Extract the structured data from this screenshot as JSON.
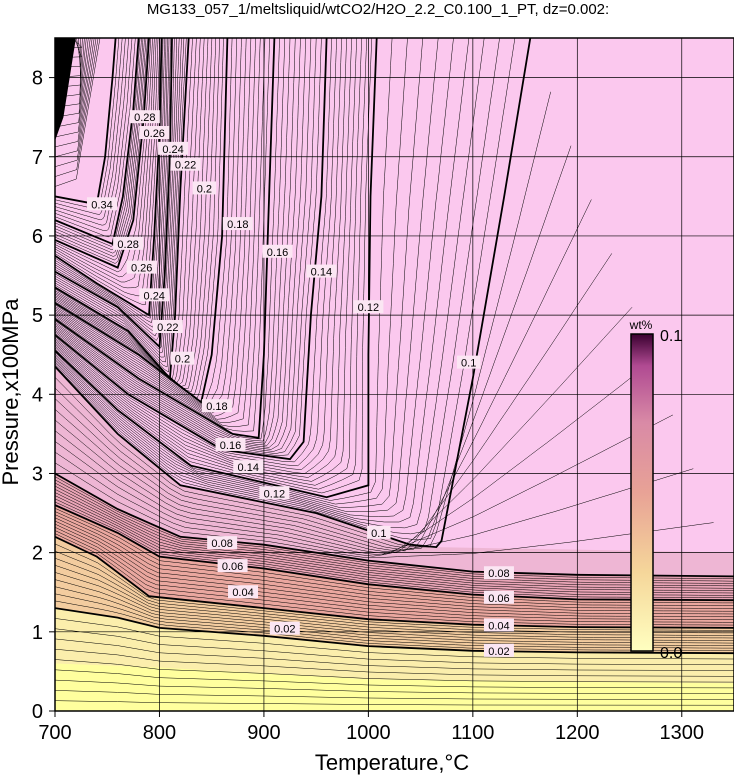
{
  "chart_data": {
    "type": "heatmap",
    "title": "MG133_057_1/meltsliquid/wtCO2/H2O_2.2_C0.100_1_PT, dz=0.002:",
    "xlabel": "Temperature,°C",
    "ylabel": "Pressure,x100MPa",
    "xlim": [
      700,
      1350
    ],
    "ylim": [
      0,
      8.5
    ],
    "x_ticks": [
      "700",
      "800",
      "900",
      "1000",
      "1100",
      "1200",
      "1300"
    ],
    "y_ticks": [
      "0",
      "1",
      "2",
      "3",
      "4",
      "5",
      "6",
      "7",
      "8"
    ],
    "grid": true,
    "colorbar": {
      "label": "wt%",
      "min_label": "0.0",
      "max_label": "0.1",
      "range": [
        0,
        0.1
      ],
      "colors": [
        "#ffffc0",
        "#f5d69a",
        "#e8a296",
        "#d98aa6",
        "#b04a92",
        "#3a0030"
      ]
    },
    "contour_interval": 0.002,
    "labeled_contours": [
      {
        "level": "0.02",
        "points": [
          [
            700,
            1.3
          ],
          [
            760,
            1.18
          ],
          [
            800,
            1.05
          ],
          [
            900,
            0.95
          ],
          [
            1000,
            0.82
          ],
          [
            1100,
            0.76
          ],
          [
            1200,
            0.74
          ],
          [
            1350,
            0.73
          ]
        ]
      },
      {
        "level": "0.04",
        "points": [
          [
            700,
            2.2
          ],
          [
            740,
            1.95
          ],
          [
            790,
            1.45
          ],
          [
            900,
            1.3
          ],
          [
            1000,
            1.16
          ],
          [
            1100,
            1.09
          ],
          [
            1200,
            1.06
          ],
          [
            1350,
            1.05
          ]
        ]
      },
      {
        "level": "0.06",
        "points": [
          [
            700,
            2.6
          ],
          [
            760,
            2.25
          ],
          [
            800,
            1.95
          ],
          [
            900,
            1.8
          ],
          [
            1000,
            1.6
          ],
          [
            1100,
            1.47
          ],
          [
            1200,
            1.41
          ],
          [
            1350,
            1.4
          ]
        ]
      },
      {
        "level": "0.08",
        "points": [
          [
            700,
            3.0
          ],
          [
            760,
            2.55
          ],
          [
            820,
            2.2
          ],
          [
            900,
            2.1
          ],
          [
            1000,
            1.9
          ],
          [
            1100,
            1.76
          ],
          [
            1200,
            1.72
          ],
          [
            1350,
            1.7
          ]
        ]
      },
      {
        "level": "0.1",
        "points": [
          [
            700,
            4.35
          ],
          [
            760,
            3.5
          ],
          [
            820,
            2.85
          ],
          [
            950,
            2.5
          ],
          [
            1040,
            2.1
          ],
          [
            1065,
            2.07
          ],
          [
            1070,
            2.15
          ],
          [
            1100,
            4.2
          ],
          [
            1130,
            6.5
          ],
          [
            1155,
            8.5
          ]
        ]
      },
      {
        "level": "0.12",
        "points": [
          [
            700,
            4.55
          ],
          [
            760,
            3.8
          ],
          [
            830,
            3.1
          ],
          [
            960,
            2.7
          ],
          [
            1000,
            2.85
          ],
          [
            1000,
            4.5
          ],
          [
            1002,
            6.5
          ],
          [
            1008,
            8.5
          ]
        ]
      },
      {
        "level": "0.14",
        "points": [
          [
            700,
            4.75
          ],
          [
            770,
            4.0
          ],
          [
            860,
            3.3
          ],
          [
            925,
            3.18
          ],
          [
            938,
            3.4
          ],
          [
            945,
            5.0
          ],
          [
            955,
            6.5
          ],
          [
            960,
            8.5
          ]
        ]
      },
      {
        "level": "0.16",
        "points": [
          [
            700,
            4.95
          ],
          [
            780,
            4.2
          ],
          [
            870,
            3.5
          ],
          [
            895,
            3.45
          ],
          [
            900,
            4.5
          ],
          [
            905,
            6.5
          ],
          [
            910,
            8.5
          ]
        ]
      },
      {
        "level": "0.18",
        "points": [
          [
            700,
            5.15
          ],
          [
            780,
            4.5
          ],
          [
            840,
            3.9
          ],
          [
            850,
            4.5
          ],
          [
            860,
            6.0
          ],
          [
            865,
            8.5
          ]
        ]
      },
      {
        "level": "0.2",
        "points": [
          [
            700,
            5.35
          ],
          [
            770,
            4.8
          ],
          [
            810,
            4.2
          ],
          [
            815,
            5.0
          ],
          [
            820,
            6.6
          ],
          [
            828,
            8.5
          ]
        ]
      },
      {
        "level": "0.22",
        "points": [
          [
            700,
            5.55
          ],
          [
            760,
            5.1
          ],
          [
            800,
            4.6
          ],
          [
            805,
            5.5
          ],
          [
            810,
            7.0
          ],
          [
            812,
            8.5
          ]
        ]
      },
      {
        "level": "0.24",
        "points": [
          [
            700,
            5.75
          ],
          [
            740,
            5.4
          ],
          [
            790,
            5.0
          ],
          [
            795,
            6.0
          ],
          [
            800,
            7.3
          ],
          [
            802,
            8.5
          ]
        ]
      },
      {
        "level": "0.26",
        "points": [
          [
            700,
            5.95
          ],
          [
            760,
            5.6
          ],
          [
            775,
            6.2
          ],
          [
            785,
            7.5
          ],
          [
            790,
            8.5
          ]
        ]
      },
      {
        "level": "0.28",
        "points": [
          [
            700,
            6.2
          ],
          [
            755,
            5.9
          ],
          [
            765,
            6.5
          ],
          [
            775,
            7.6
          ],
          [
            780,
            8.5
          ]
        ]
      },
      {
        "level": "0.34",
        "points": [
          [
            700,
            6.5
          ],
          [
            740,
            6.4
          ],
          [
            748,
            7.0
          ],
          [
            755,
            8.0
          ],
          [
            758,
            8.5
          ]
        ]
      }
    ],
    "labels_placed": [
      {
        "text": "0.02",
        "x": 920,
        "y": 1.04
      },
      {
        "text": "0.04",
        "x": 880,
        "y": 1.5
      },
      {
        "text": "0.06",
        "x": 870,
        "y": 1.83
      },
      {
        "text": "0.08",
        "x": 860,
        "y": 2.12
      },
      {
        "text": "0.1",
        "x": 1010,
        "y": 2.25
      },
      {
        "text": "0.12",
        "x": 910,
        "y": 2.75
      },
      {
        "text": "0.14",
        "x": 885,
        "y": 3.08
      },
      {
        "text": "0.16",
        "x": 868,
        "y": 3.36
      },
      {
        "text": "0.18",
        "x": 855,
        "y": 3.85
      },
      {
        "text": "0.2",
        "x": 822,
        "y": 4.45
      },
      {
        "text": "0.22",
        "x": 808,
        "y": 4.85
      },
      {
        "text": "0.24",
        "x": 795,
        "y": 5.25
      },
      {
        "text": "0.26",
        "x": 783,
        "y": 5.6
      },
      {
        "text": "0.28",
        "x": 770,
        "y": 5.9
      },
      {
        "text": "0.34",
        "x": 745,
        "y": 6.4
      },
      {
        "text": "0.02",
        "x": 1125,
        "y": 0.76
      },
      {
        "text": "0.04",
        "x": 1125,
        "y": 1.08
      },
      {
        "text": "0.06",
        "x": 1125,
        "y": 1.43
      },
      {
        "text": "0.08",
        "x": 1125,
        "y": 1.74
      },
      {
        "text": "0.1",
        "x": 1096,
        "y": 4.4
      },
      {
        "text": "0.12",
        "x": 1000,
        "y": 5.1
      },
      {
        "text": "0.14",
        "x": 955,
        "y": 5.55
      },
      {
        "text": "0.16",
        "x": 913,
        "y": 5.8
      },
      {
        "text": "0.18",
        "x": 875,
        "y": 6.15
      },
      {
        "text": "0.2",
        "x": 843,
        "y": 6.6
      },
      {
        "text": "0.22",
        "x": 825,
        "y": 6.9
      },
      {
        "text": "0.24",
        "x": 813,
        "y": 7.1
      },
      {
        "text": "0.26",
        "x": 795,
        "y": 7.3
      },
      {
        "text": "0.28",
        "x": 786,
        "y": 7.5
      }
    ]
  }
}
